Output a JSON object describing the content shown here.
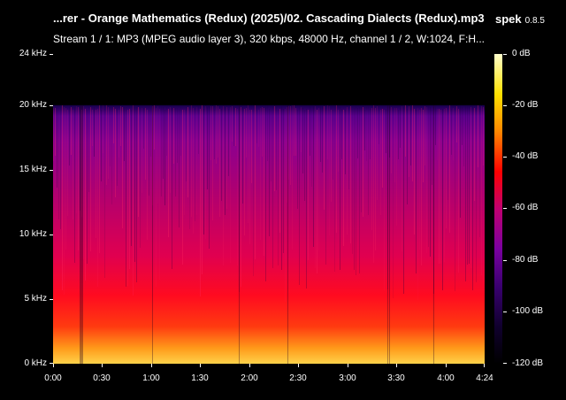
{
  "window": {
    "title": "...rer - Orange Mathematics (Redux) (2025)/02. Cascading Dialects (Redux).mp3",
    "app_name": "spek",
    "app_version": "0.8.5",
    "stream_info": "Stream 1 / 1: MP3 (MPEG audio layer 3), 320 kbps, 48000 Hz, channel 1 / 2, W:1024, F:H..."
  },
  "colors": {
    "background": "#000000",
    "text": "#ffffff",
    "palette": [
      "#000000",
      "#10002e",
      "#3a0070",
      "#7a00a0",
      "#c00070",
      "#ff0000",
      "#ff8800",
      "#ffe000",
      "#ffffcc"
    ]
  },
  "frequency_axis": {
    "labels": [
      "24 kHz",
      "20 kHz",
      "15 kHz",
      "10 kHz",
      "5 kHz",
      "0 kHz"
    ]
  },
  "time_axis": {
    "labels": [
      "0:00",
      "0:30",
      "1:00",
      "1:30",
      "2:00",
      "2:30",
      "3:00",
      "3:30",
      "4:00",
      "4:24"
    ]
  },
  "db_scale": {
    "labels": [
      "0 dB",
      "-20 dB",
      "-40 dB",
      "-60 dB",
      "-80 dB",
      "-100 dB",
      "-120 dB"
    ]
  },
  "spectrogram": {
    "duration_seconds": 264,
    "max_frequency_khz": 24,
    "cutoff_frequency_khz": 20
  }
}
